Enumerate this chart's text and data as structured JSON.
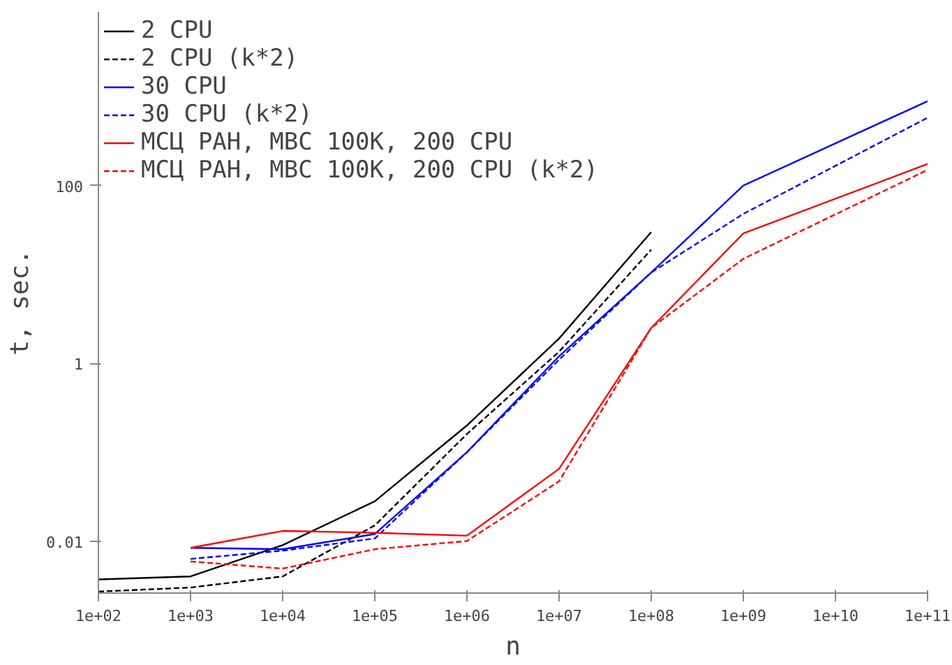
{
  "chart_data": {
    "type": "line",
    "xlabel": "n",
    "ylabel": "t, sec.",
    "log": "xy",
    "grid": false,
    "legend": "top left",
    "x": [
      100,
      1000,
      10000,
      100000,
      1000000,
      10000000,
      100000000,
      1000000000,
      100000000000
    ],
    "xlim": [
      100,
      100000000000
    ],
    "xticks": [
      {
        "value": 100,
        "label": "1e+02"
      },
      {
        "value": 1000,
        "label": "1e+03"
      },
      {
        "value": 10000,
        "label": "1e+04"
      },
      {
        "value": 100000,
        "label": "1e+05"
      },
      {
        "value": 1000000,
        "label": "1e+06"
      },
      {
        "value": 10000000,
        "label": "1e+07"
      },
      {
        "value": 100000000,
        "label": "1e+08"
      },
      {
        "value": 1000000000,
        "label": "1e+09"
      },
      {
        "value": 10000000000,
        "label": "1e+10"
      },
      {
        "value": 100000000000,
        "label": "1e+11"
      }
    ],
    "ylim": [
      0.0026,
      9000
    ],
    "yticks": [
      0.01,
      1,
      100
    ],
    "series": [
      {
        "name": "2 CPU",
        "color": "#000000",
        "line_style": "solid",
        "values": [
          0.0037,
          0.004,
          0.009,
          0.028,
          0.2,
          1.9,
          30,
          null,
          null
        ]
      },
      {
        "name": "2 CPU (k*2)",
        "color": "#000000",
        "line_style": "dashed",
        "values": [
          0.0027,
          0.003,
          0.004,
          0.015,
          0.16,
          1.35,
          19,
          null,
          null
        ]
      },
      {
        "name": "30 CPU",
        "color": "#0000ff",
        "line_style": "solid",
        "values": [
          null,
          0.0084,
          0.0081,
          0.012,
          0.1,
          1.2,
          10.5,
          100,
          890
        ]
      },
      {
        "name": "30 CPU (k*2)",
        "color": "#0000ff",
        "line_style": "dashed",
        "values": [
          null,
          0.0063,
          0.0078,
          0.0107,
          0.1,
          1.1,
          10.5,
          48,
          580
        ]
      },
      {
        "name": "МСЦ РАН, МВС 100К, 200 CPU",
        "color": "#ff0000",
        "line_style": "solid",
        "values": [
          null,
          0.0084,
          0.013,
          0.0124,
          0.0115,
          0.065,
          2.5,
          29,
          175
        ]
      },
      {
        "name": "МСЦ РАН, МВС 100К, 200 CPU (k*2)",
        "color": "#ff0000",
        "line_style": "dashed",
        "values": [
          null,
          0.0059,
          0.0049,
          0.0081,
          0.01,
          0.047,
          2.5,
          15,
          150
        ]
      }
    ]
  }
}
